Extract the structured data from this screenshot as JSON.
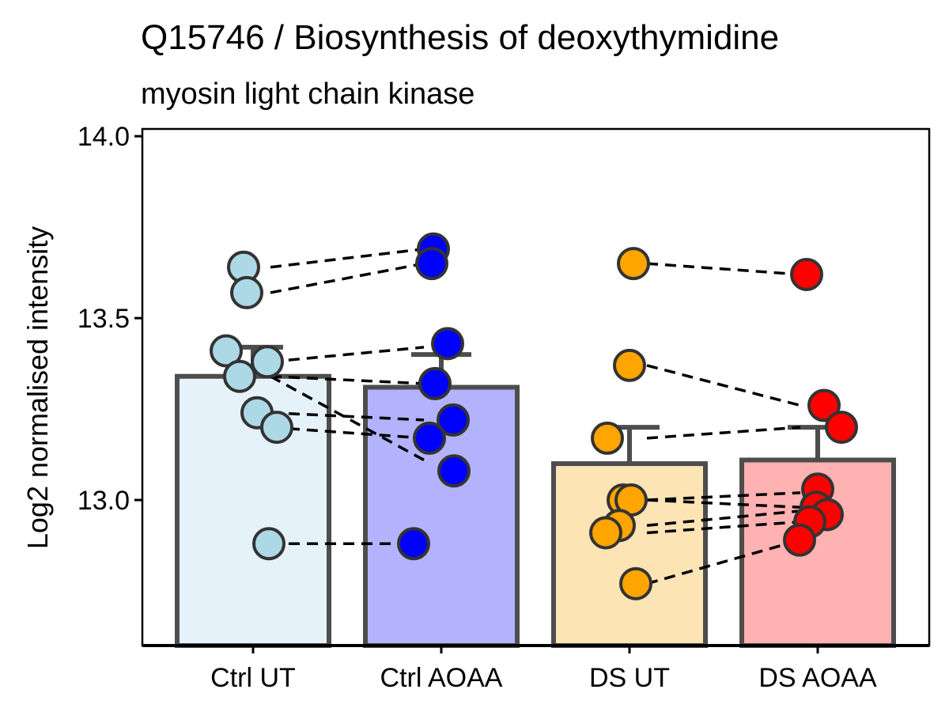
{
  "chart_data": {
    "type": "bar",
    "title": "Q15746 / Biosynthesis of deoxythymidine",
    "subtitle": "myosin light chain kinase",
    "xlabel": "",
    "ylabel": "Log2 normalised intensity",
    "ylim": [
      12.6,
      14.02
    ],
    "yticks": [
      "13.0",
      "13.5",
      "14.0"
    ],
    "ytick_values": [
      13.0,
      13.5,
      14.0
    ],
    "grid": false,
    "categories": [
      "Ctrl UT",
      "Ctrl AOAA",
      "DS UT",
      "DS AOAA"
    ],
    "values": [
      13.34,
      13.31,
      13.1,
      13.11
    ],
    "error_upper": [
      13.42,
      13.4,
      13.2,
      13.2
    ],
    "bar_fill_colors": [
      "#e6f2f9",
      "#b3b3fd",
      "#fce4b4",
      "#feb2b2"
    ],
    "point_colors": [
      "#add8e6",
      "#0000ff",
      "#ffa500",
      "#ff0000"
    ],
    "outline_color": "#4d4d4d",
    "points": [
      [
        13.64,
        13.57,
        13.41,
        13.38,
        13.34,
        13.24,
        13.2,
        12.88
      ],
      [
        13.69,
        13.65,
        13.43,
        13.32,
        13.22,
        13.17,
        13.08,
        12.88
      ],
      [
        13.65,
        13.37,
        13.17,
        13.0,
        13.0,
        12.93,
        12.91,
        12.77
      ],
      [
        13.62,
        13.26,
        13.2,
        13.03,
        12.98,
        12.96,
        12.94,
        12.89
      ]
    ],
    "pairs_ctrl": [
      [
        13.64,
        13.69
      ],
      [
        13.57,
        13.65
      ],
      [
        13.38,
        13.42
      ],
      [
        13.34,
        13.32
      ],
      [
        13.34,
        13.11
      ],
      [
        13.24,
        13.22
      ],
      [
        13.2,
        13.17
      ],
      [
        12.88,
        12.88
      ]
    ],
    "pairs_ds": [
      [
        13.65,
        13.62
      ],
      [
        13.37,
        13.26
      ],
      [
        13.17,
        13.2
      ],
      [
        13.0,
        13.02
      ],
      [
        13.0,
        12.98
      ],
      [
        12.93,
        12.97
      ],
      [
        12.91,
        12.94
      ],
      [
        12.77,
        12.89
      ]
    ]
  }
}
